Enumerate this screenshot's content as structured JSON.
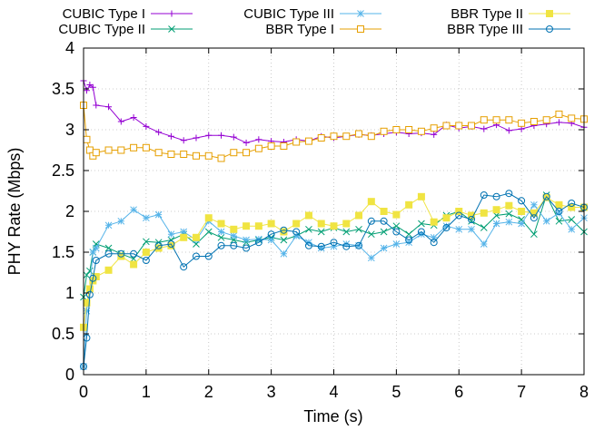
{
  "chart_data": {
    "type": "line",
    "xlabel": "Time (s)",
    "ylabel": "PHY Rate (Mbps)",
    "xlim": [
      0,
      8
    ],
    "ylim": [
      0,
      4
    ],
    "xticks": [
      0,
      1,
      2,
      3,
      4,
      5,
      6,
      7,
      8
    ],
    "yticks": [
      0,
      0.5,
      1,
      1.5,
      2,
      2.5,
      3,
      3.5,
      4
    ],
    "grid": true,
    "legend_placement": "top",
    "series": [
      {
        "name": "CUBIC Type I",
        "color": "#9400d3",
        "marker": "plus",
        "x": [
          0.0,
          0.05,
          0.1,
          0.15,
          0.2,
          0.4,
          0.6,
          0.8,
          1.0,
          1.2,
          1.4,
          1.6,
          1.8,
          2.0,
          2.2,
          2.4,
          2.6,
          2.8,
          3.0,
          3.2,
          3.4,
          3.6,
          3.8,
          4.0,
          4.2,
          4.4,
          4.6,
          4.8,
          5.0,
          5.2,
          5.4,
          5.6,
          5.8,
          6.0,
          6.2,
          6.4,
          6.6,
          6.8,
          7.0,
          7.2,
          7.4,
          7.6,
          7.8,
          8.0
        ],
        "y": [
          3.6,
          3.48,
          3.55,
          3.52,
          3.3,
          3.28,
          3.1,
          3.15,
          3.04,
          2.97,
          2.92,
          2.87,
          2.9,
          2.93,
          2.93,
          2.91,
          2.84,
          2.88,
          2.86,
          2.85,
          2.88,
          2.86,
          2.92,
          2.9,
          2.92,
          2.94,
          2.93,
          2.95,
          2.97,
          2.95,
          2.96,
          2.94,
          3.06,
          3.02,
          3.04,
          3.01,
          3.06,
          2.99,
          3.01,
          3.05,
          3.07,
          3.09,
          3.08,
          3.03
        ]
      },
      {
        "name": "CUBIC Type II",
        "color": "#009e73",
        "marker": "cross",
        "x": [
          0.0,
          0.05,
          0.1,
          0.15,
          0.2,
          0.4,
          0.6,
          0.8,
          1.0,
          1.2,
          1.4,
          1.6,
          1.8,
          2.0,
          2.2,
          2.4,
          2.6,
          2.8,
          3.0,
          3.2,
          3.4,
          3.6,
          3.8,
          4.0,
          4.2,
          4.4,
          4.6,
          4.8,
          5.0,
          5.2,
          5.4,
          5.6,
          5.8,
          6.0,
          6.2,
          6.4,
          6.6,
          6.8,
          7.0,
          7.2,
          7.4,
          7.6,
          7.8,
          8.0
        ],
        "y": [
          0.95,
          1.22,
          1.27,
          1.5,
          1.6,
          1.55,
          1.48,
          1.42,
          1.63,
          1.62,
          1.65,
          1.72,
          1.6,
          1.75,
          1.68,
          1.65,
          1.62,
          1.65,
          1.68,
          1.65,
          1.7,
          1.78,
          1.75,
          1.8,
          1.75,
          1.78,
          1.72,
          1.75,
          1.82,
          1.72,
          1.85,
          1.83,
          1.95,
          2.0,
          1.88,
          1.8,
          1.95,
          1.97,
          1.9,
          1.72,
          2.2,
          1.88,
          1.9,
          1.75
        ]
      },
      {
        "name": "CUBIC Type III",
        "color": "#56b4e9",
        "marker": "star",
        "x": [
          0.0,
          0.05,
          0.1,
          0.15,
          0.2,
          0.4,
          0.6,
          0.8,
          1.0,
          1.2,
          1.4,
          1.6,
          1.8,
          2.0,
          2.2,
          2.4,
          2.6,
          2.8,
          3.0,
          3.2,
          3.4,
          3.6,
          3.8,
          4.0,
          4.2,
          4.4,
          4.6,
          4.8,
          5.0,
          5.2,
          5.4,
          5.6,
          5.8,
          6.0,
          6.2,
          6.4,
          6.6,
          6.8,
          7.0,
          7.2,
          7.4,
          7.6,
          7.8,
          8.0
        ],
        "y": [
          0.1,
          0.78,
          1.05,
          1.5,
          1.55,
          1.83,
          1.88,
          2.02,
          1.92,
          1.96,
          1.72,
          1.75,
          1.65,
          1.88,
          1.75,
          1.7,
          1.65,
          1.66,
          1.65,
          1.48,
          1.7,
          1.62,
          1.55,
          1.57,
          1.6,
          1.58,
          1.43,
          1.55,
          1.6,
          1.62,
          1.72,
          1.68,
          1.82,
          1.78,
          1.78,
          1.6,
          1.85,
          1.87,
          1.85,
          2.08,
          1.88,
          1.98,
          1.78,
          1.92
        ]
      },
      {
        "name": "BBR Type I",
        "color": "#e69f00",
        "marker": "square",
        "x": [
          0.0,
          0.05,
          0.1,
          0.15,
          0.2,
          0.4,
          0.6,
          0.8,
          1.0,
          1.2,
          1.4,
          1.6,
          1.8,
          2.0,
          2.2,
          2.4,
          2.6,
          2.8,
          3.0,
          3.2,
          3.4,
          3.6,
          3.8,
          4.0,
          4.2,
          4.4,
          4.6,
          4.8,
          5.0,
          5.2,
          5.4,
          5.6,
          5.8,
          6.0,
          6.2,
          6.4,
          6.6,
          6.8,
          7.0,
          7.2,
          7.4,
          7.6,
          7.8,
          8.0
        ],
        "y": [
          3.3,
          2.88,
          2.75,
          2.68,
          2.72,
          2.75,
          2.75,
          2.78,
          2.78,
          2.72,
          2.7,
          2.7,
          2.68,
          2.68,
          2.65,
          2.72,
          2.72,
          2.77,
          2.8,
          2.8,
          2.85,
          2.86,
          2.9,
          2.92,
          2.92,
          2.95,
          2.92,
          2.98,
          3.0,
          3.0,
          2.98,
          3.02,
          3.05,
          3.05,
          3.05,
          3.12,
          3.12,
          3.12,
          3.08,
          3.1,
          3.12,
          3.19,
          3.14,
          3.13
        ]
      },
      {
        "name": "BBR Type II",
        "color": "#f0e442",
        "marker": "filled-square",
        "x": [
          0.0,
          0.05,
          0.1,
          0.15,
          0.2,
          0.4,
          0.6,
          0.8,
          1.0,
          1.2,
          1.4,
          1.6,
          1.8,
          2.0,
          2.2,
          2.4,
          2.6,
          2.8,
          3.0,
          3.2,
          3.4,
          3.6,
          3.8,
          4.0,
          4.2,
          4.4,
          4.6,
          4.8,
          5.0,
          5.2,
          5.4,
          5.6,
          5.8,
          6.0,
          6.2,
          6.4,
          6.6,
          6.8,
          7.0,
          7.2,
          7.4,
          7.6,
          7.8,
          8.0
        ],
        "y": [
          0.58,
          0.88,
          1.05,
          1.15,
          1.2,
          1.28,
          1.45,
          1.35,
          1.5,
          1.55,
          1.58,
          1.68,
          1.68,
          1.92,
          1.85,
          1.78,
          1.82,
          1.82,
          1.85,
          1.75,
          1.85,
          1.95,
          1.85,
          1.82,
          1.85,
          1.95,
          2.12,
          2.0,
          1.96,
          2.08,
          2.18,
          1.87,
          1.92,
          2.0,
          1.95,
          1.98,
          2.02,
          2.07,
          2.0,
          1.98,
          2.17,
          2.08,
          2.05,
          2.05
        ]
      },
      {
        "name": "BBR Type III",
        "color": "#0072b2",
        "marker": "circle",
        "x": [
          0.0,
          0.05,
          0.1,
          0.15,
          0.2,
          0.4,
          0.6,
          0.8,
          1.0,
          1.2,
          1.4,
          1.6,
          1.8,
          2.0,
          2.2,
          2.4,
          2.6,
          2.8,
          3.0,
          3.2,
          3.4,
          3.6,
          3.8,
          4.0,
          4.2,
          4.4,
          4.6,
          4.8,
          5.0,
          5.2,
          5.4,
          5.6,
          5.8,
          6.0,
          6.2,
          6.4,
          6.6,
          6.8,
          7.0,
          7.2,
          7.4,
          7.6,
          7.8,
          8.0
        ],
        "y": [
          0.1,
          0.45,
          0.98,
          1.18,
          1.4,
          1.48,
          1.48,
          1.48,
          1.4,
          1.58,
          1.6,
          1.32,
          1.45,
          1.45,
          1.58,
          1.58,
          1.55,
          1.62,
          1.72,
          1.77,
          1.75,
          1.58,
          1.57,
          1.62,
          1.57,
          1.58,
          1.88,
          1.88,
          1.75,
          1.65,
          1.75,
          1.62,
          1.8,
          1.95,
          1.9,
          2.2,
          2.18,
          2.22,
          2.13,
          1.92,
          2.18,
          2.0,
          2.1,
          2.05
        ]
      }
    ]
  }
}
